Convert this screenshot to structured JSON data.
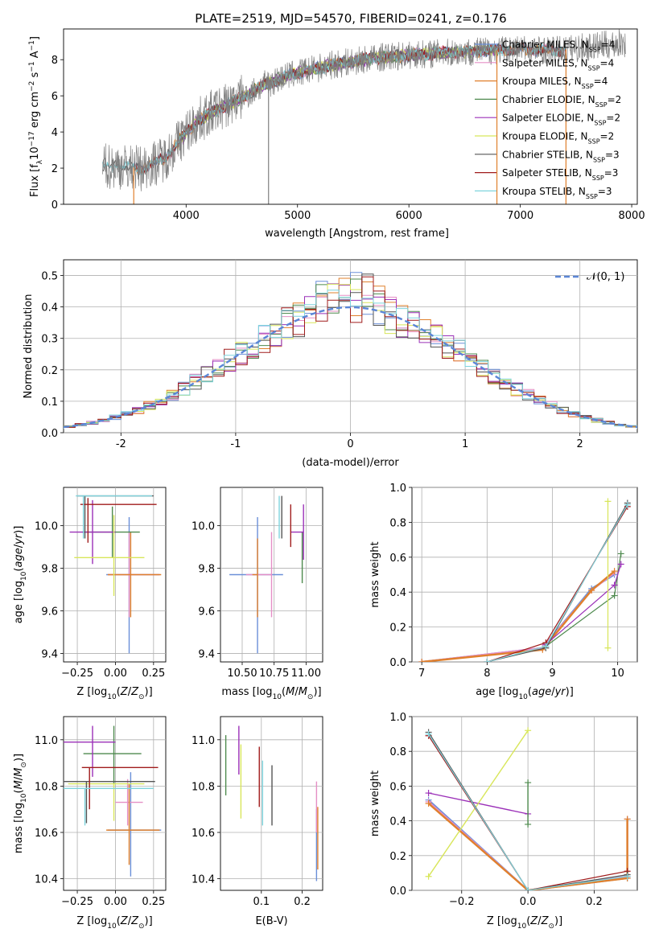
{
  "figure_title": "PLATE=2519, MJD=54570, FIBERID=0241, z=0.176",
  "colors": {
    "chabrier_miles": "#6a8fd8",
    "salpeter_miles": "#e58fc6",
    "kroupa_miles": "#e0802d",
    "chabrier_elodie": "#4e8a4e",
    "salpeter_elodie": "#9b30b8",
    "kroupa_elodie": "#d8e65a",
    "chabrier_stelib": "#555555",
    "salpeter_stelib": "#a01c1c",
    "kroupa_stelib": "#7fd4dd",
    "gaussian": "#5b86d6",
    "data_spectrum": "#7f7f7f"
  },
  "chart_data": [
    {
      "id": "spectrum",
      "type": "line",
      "xlabel": "wavelength [Angstrom, rest frame]",
      "ylabel": "Flux [f_λ 10^-17 erg cm^-2 s^-1 A^-1]",
      "xlim": [
        2900,
        8050
      ],
      "ylim": [
        0,
        9.7
      ],
      "xticks": [
        4000,
        5000,
        6000,
        7000,
        8000
      ],
      "yticks": [
        0,
        2,
        4,
        6,
        8
      ],
      "grid": false,
      "legend_placement": "right",
      "legend": [
        {
          "label": "Chabrier MILES, N",
          "sub": "SSP",
          "tail": "=4",
          "color_key": "chabrier_miles"
        },
        {
          "label": "Salpeter MILES, N",
          "sub": "SSP",
          "tail": "=4",
          "color_key": "salpeter_miles"
        },
        {
          "label": "Kroupa MILES, N",
          "sub": "SSP",
          "tail": "=4",
          "color_key": "kroupa_miles"
        },
        {
          "label": "Chabrier ELODIE, N",
          "sub": "SSP",
          "tail": "=2",
          "color_key": "chabrier_elodie"
        },
        {
          "label": "Salpeter ELODIE, N",
          "sub": "SSP",
          "tail": "=2",
          "color_key": "salpeter_elodie"
        },
        {
          "label": "Kroupa ELODIE, N",
          "sub": "SSP",
          "tail": "=2",
          "color_key": "kroupa_elodie"
        },
        {
          "label": "Chabrier STELIB, N",
          "sub": "SSP",
          "tail": "=3",
          "color_key": "chabrier_stelib"
        },
        {
          "label": "Salpeter STELIB, N",
          "sub": "SSP",
          "tail": "=3",
          "color_key": "salpeter_stelib"
        },
        {
          "label": "Kroupa STELIB, N",
          "sub": "SSP",
          "tail": "=3",
          "color_key": "kroupa_stelib"
        }
      ],
      "continuum": {
        "x": [
          3250,
          3400,
          3600,
          3800,
          3950,
          4100,
          4300,
          4500,
          4700,
          4900,
          5100,
          5300,
          5500,
          5700,
          5900,
          6100,
          6400,
          6700,
          7000,
          7300,
          7600,
          7900
        ],
        "y": [
          2.1,
          2.1,
          2.0,
          2.5,
          3.6,
          4.6,
          5.3,
          5.9,
          6.6,
          7.1,
          7.4,
          7.7,
          7.9,
          8.1,
          8.2,
          8.3,
          8.4,
          8.5,
          8.6,
          8.5,
          8.7,
          8.9
        ]
      },
      "series_range": {
        "data_x": [
          3250,
          7950
        ],
        "models_x": [
          3530,
          7410
        ],
        "elodie_x": [
          3900,
          6800
        ]
      }
    },
    {
      "id": "residuals",
      "type": "histogram",
      "xlabel": "(data-model)/error",
      "ylabel": "Normed distribution",
      "xlim": [
        -2.5,
        2.5
      ],
      "ylim": [
        0,
        0.55
      ],
      "xticks": [
        -2,
        -1,
        0,
        1,
        2
      ],
      "yticks": [
        0.0,
        0.1,
        0.2,
        0.3,
        0.4,
        0.5
      ],
      "grid": true,
      "bin_width": 0.1,
      "legend": [
        {
          "label": "𝒩(0, 1)",
          "color_key": "gaussian"
        }
      ],
      "legend_placement": "top-right"
    },
    {
      "id": "age_vs_Z",
      "type": "errorbar",
      "xlabel": "Z [log10(Z/Z⊙)]",
      "ylabel": "age  [log10(age/yr)]",
      "xlim": [
        -0.34,
        0.33
      ],
      "ylim": [
        9.36,
        10.18
      ],
      "xticks": [
        -0.25,
        0.0,
        0.25
      ],
      "xticklabels": [
        "−0.25",
        "0.00",
        "0.25"
      ],
      "yticks": [
        9.4,
        9.6,
        9.8,
        10.0
      ],
      "grid": true,
      "points": [
        {
          "color_key": "chabrier_miles",
          "x": 0.09,
          "xerr": [
            0.15,
            0.2
          ],
          "y": 9.77,
          "yerr": [
            0.37,
            0.27
          ]
        },
        {
          "color_key": "salpeter_miles",
          "x": 0.09,
          "xerr": [
            0.14,
            0.2
          ],
          "y": 9.77,
          "yerr": [
            0.2,
            0.2
          ]
        },
        {
          "color_key": "kroupa_miles",
          "x": 0.1,
          "xerr": [
            0.15,
            0.2
          ],
          "y": 9.77,
          "yerr": [
            0.2,
            0.2
          ]
        },
        {
          "color_key": "chabrier_elodie",
          "x": -0.02,
          "xerr": [
            0.2,
            0.18
          ],
          "y": 9.97,
          "yerr": [
            0.12,
            0.12
          ]
        },
        {
          "color_key": "salpeter_elodie",
          "x": -0.15,
          "xerr": [
            0.15,
            0.15
          ],
          "y": 9.97,
          "yerr": [
            0.15,
            0.15
          ]
        },
        {
          "color_key": "kroupa_elodie",
          "x": -0.01,
          "xerr": [
            0.26,
            0.2
          ],
          "y": 9.85,
          "yerr": [
            0.18,
            0.2
          ]
        },
        {
          "color_key": "chabrier_stelib",
          "x": -0.2,
          "xerr": [
            0.05,
            0.45
          ],
          "y": 10.14,
          "yerr": [
            0.2,
            0.0
          ]
        },
        {
          "color_key": "salpeter_stelib",
          "x": -0.18,
          "xerr": [
            0.05,
            0.45
          ],
          "y": 10.1,
          "yerr": [
            0.18,
            0.03
          ]
        },
        {
          "color_key": "kroupa_stelib",
          "x": -0.21,
          "xerr": [
            0.05,
            0.45
          ],
          "y": 10.14,
          "yerr": [
            0.2,
            0.0
          ]
        }
      ]
    },
    {
      "id": "age_vs_mass",
      "type": "errorbar",
      "xlabel": "mass [log10(M/M⊙)]",
      "xlim": [
        10.33,
        11.13
      ],
      "ylim": [
        9.36,
        10.18
      ],
      "xticks": [
        10.5,
        10.75,
        11.0
      ],
      "xticklabels": [
        "10.50",
        "10.75",
        "11.00"
      ],
      "yticks": [
        9.4,
        9.6,
        9.8,
        10.0
      ],
      "grid": true,
      "points": [
        {
          "color_key": "chabrier_miles",
          "x": 10.62,
          "xerr": [
            0.22,
            0.2
          ],
          "y": 9.77,
          "yerr": [
            0.37,
            0.27
          ]
        },
        {
          "color_key": "salpeter_miles",
          "x": 10.73,
          "xerr": [
            0.2,
            0.0
          ],
          "y": 9.77,
          "yerr": [
            0.2,
            0.2
          ]
        },
        {
          "color_key": "kroupa_miles",
          "x": 10.62,
          "xerr": [
            0.04,
            0.0
          ],
          "y": 9.77,
          "yerr": [
            0.2,
            0.17
          ]
        },
        {
          "color_key": "chabrier_elodie",
          "x": 10.97,
          "xerr": [
            0.0,
            0.0
          ],
          "y": 9.85,
          "yerr": [
            0.12,
            0.12
          ]
        },
        {
          "color_key": "salpeter_elodie",
          "x": 10.98,
          "xerr": [
            0.1,
            0.0
          ],
          "y": 9.97,
          "yerr": [
            0.13,
            0.13
          ]
        },
        {
          "color_key": "kroupa_elodie",
          "x": 10.81,
          "xerr": [
            0.0,
            0.0
          ],
          "y": 9.85,
          "yerr": [
            0.0,
            0.0
          ]
        },
        {
          "color_key": "chabrier_stelib",
          "x": 10.81,
          "xerr": [
            0.0,
            0.0
          ],
          "y": 10.14,
          "yerr": [
            0.2,
            0.0
          ]
        },
        {
          "color_key": "salpeter_stelib",
          "x": 10.88,
          "xerr": [
            0.0,
            0.0
          ],
          "y": 10.1,
          "yerr": [
            0.2,
            0.0
          ]
        },
        {
          "color_key": "kroupa_stelib",
          "x": 10.79,
          "xerr": [
            0.0,
            0.0
          ],
          "y": 10.14,
          "yerr": [
            0.2,
            0.0
          ]
        }
      ]
    },
    {
      "id": "weight_vs_age",
      "type": "line",
      "xlabel": "age  [log10(age/yr)]",
      "ylabel": "mass weight",
      "xlim": [
        6.85,
        10.3
      ],
      "ylim": [
        0.0,
        1.0
      ],
      "xticks": [
        7,
        8,
        9,
        10
      ],
      "yticks": [
        0.0,
        0.2,
        0.4,
        0.6,
        0.8,
        1.0
      ],
      "grid": true
    },
    {
      "id": "mass_vs_Z",
      "type": "errorbar",
      "xlabel": "Z [log10(Z/Z⊙)]",
      "ylabel": "mass [log10(M/M⊙)]",
      "xlim": [
        -0.34,
        0.33
      ],
      "ylim": [
        10.35,
        11.1
      ],
      "xticks": [
        -0.25,
        0.0,
        0.25
      ],
      "xticklabels": [
        "−0.25",
        "0.00",
        "0.25"
      ],
      "yticks": [
        10.4,
        10.6,
        10.8,
        11.0
      ],
      "grid": true
    },
    {
      "id": "mass_vs_ebv",
      "type": "errorbar",
      "xlabel": "E(B-V)",
      "xlim": [
        0.0,
        0.25
      ],
      "ylim": [
        10.35,
        11.1
      ],
      "xticks": [
        0.1,
        0.2
      ],
      "xticklabels": [
        "0.1",
        "0.2"
      ],
      "yticks": [
        10.4,
        10.6,
        10.8,
        11.0
      ],
      "grid": true
    },
    {
      "id": "weight_vs_Z",
      "type": "line",
      "xlabel": "Z [log10(Z/Z⊙)]",
      "ylabel": "mass weight",
      "xlim": [
        -0.35,
        0.33
      ],
      "ylim": [
        0.0,
        1.0
      ],
      "xticks": [
        -0.2,
        0.0,
        0.2
      ],
      "xticklabels": [
        "−0.2",
        "0.0",
        "0.2"
      ],
      "yticks": [
        0.0,
        0.2,
        0.4,
        0.6,
        0.8,
        1.0
      ],
      "grid": true
    }
  ]
}
